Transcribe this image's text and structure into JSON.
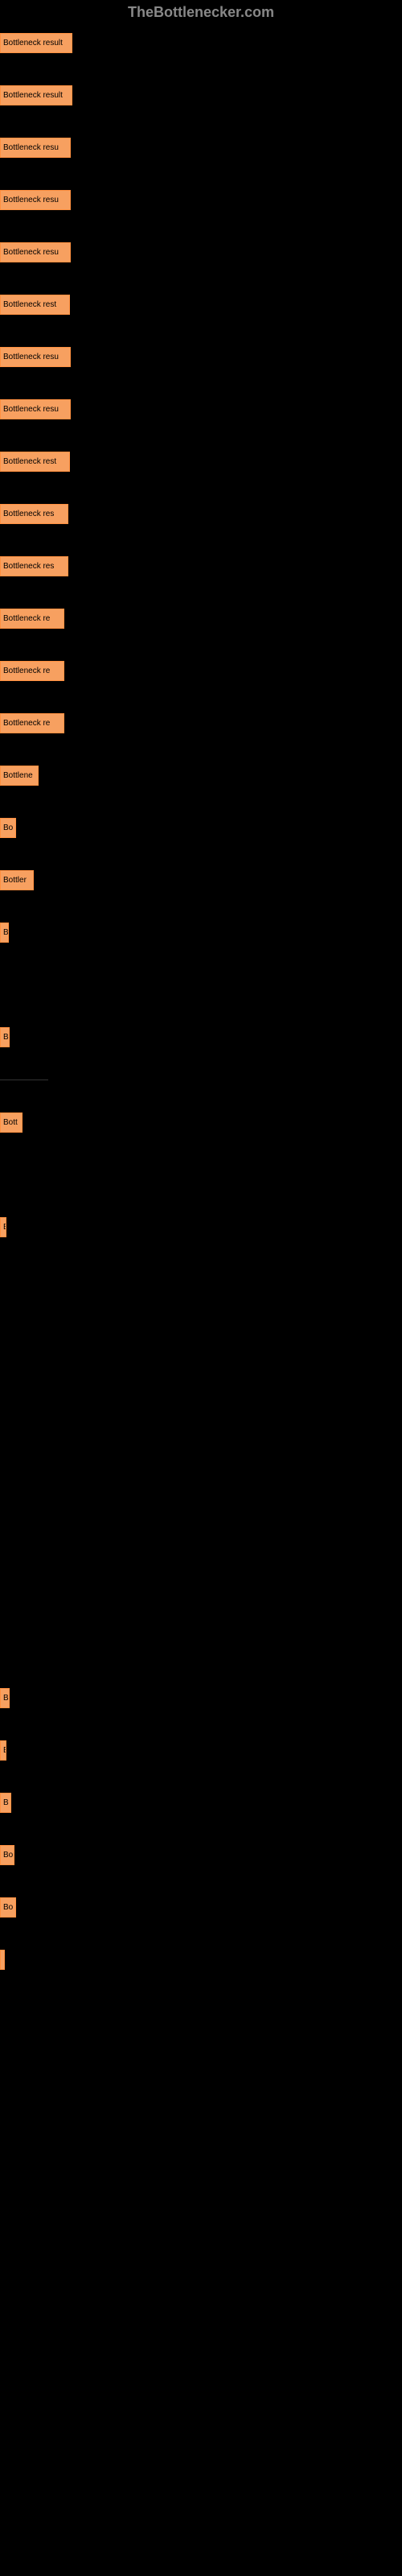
{
  "header": {
    "title": "TheBottlenecker.com"
  },
  "chart": {
    "type": "bar",
    "bar_color": "#f7a060",
    "bar_border_color": "#ff9040",
    "background_color": "#000000",
    "text_color": "#000000",
    "header_color": "#888888",
    "bars": [
      {
        "label": "Bottleneck result",
        "width": 90
      },
      {
        "label": "Bottleneck result",
        "width": 90
      },
      {
        "label": "Bottleneck resu",
        "width": 88
      },
      {
        "label": "Bottleneck resu",
        "width": 88
      },
      {
        "label": "Bottleneck resu",
        "width": 88
      },
      {
        "label": "Bottleneck rest",
        "width": 87
      },
      {
        "label": "Bottleneck resu",
        "width": 88
      },
      {
        "label": "Bottleneck resu",
        "width": 88
      },
      {
        "label": "Bottleneck rest",
        "width": 87
      },
      {
        "label": "Bottleneck res",
        "width": 85
      },
      {
        "label": "Bottleneck res",
        "width": 85
      },
      {
        "label": "Bottleneck re",
        "width": 80
      },
      {
        "label": "Bottleneck re",
        "width": 80
      },
      {
        "label": "Bottleneck re",
        "width": 80
      },
      {
        "label": "Bottlene",
        "width": 48
      },
      {
        "label": "Bo",
        "width": 20
      },
      {
        "label": "Bottler",
        "width": 42
      },
      {
        "label": "B",
        "width": 11
      },
      {
        "label": "",
        "width": 0,
        "separator": true
      },
      {
        "label": "B",
        "width": 12
      },
      {
        "label": "",
        "width": 0,
        "separator_line": true
      },
      {
        "label": "Bott",
        "width": 28
      },
      {
        "label": "",
        "width": 0,
        "separator": true
      },
      {
        "label": "B",
        "width": 8
      },
      {
        "label": "",
        "width": 0,
        "separator": true
      },
      {
        "label": "",
        "width": 0,
        "separator": true
      },
      {
        "label": "",
        "width": 0,
        "separator": true
      },
      {
        "label": "",
        "width": 0,
        "separator": true
      },
      {
        "label": "",
        "width": 0,
        "separator": true
      },
      {
        "label": "",
        "width": 0,
        "separator": true
      },
      {
        "label": "",
        "width": 0,
        "separator": true
      },
      {
        "label": "",
        "width": 0,
        "separator": true
      },
      {
        "label": "B",
        "width": 12
      },
      {
        "label": "B",
        "width": 8
      },
      {
        "label": "B",
        "width": 14
      },
      {
        "label": "Bo",
        "width": 18
      },
      {
        "label": "Bo",
        "width": 20
      },
      {
        "label": "",
        "width": 6
      }
    ]
  }
}
